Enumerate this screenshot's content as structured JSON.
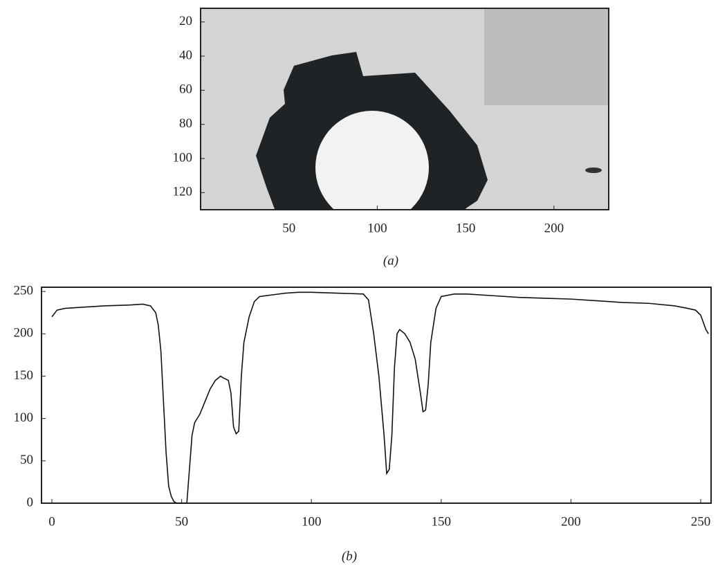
{
  "chart_data": [
    {
      "type": "image",
      "caption": "(a)",
      "xlim": [
        0,
        231
      ],
      "xticks": [
        50,
        100,
        150,
        200
      ],
      "ylim": [
        130,
        12
      ],
      "yticks": [
        20,
        40,
        60,
        80,
        100,
        120
      ]
    },
    {
      "type": "line",
      "caption": "(b)",
      "xlim": [
        -4,
        254
      ],
      "xticks": [
        0,
        50,
        100,
        150,
        200,
        250
      ],
      "ylim": [
        0,
        255
      ],
      "yticks": [
        0,
        50,
        100,
        150,
        200,
        250
      ],
      "x": [
        0,
        2,
        5,
        10,
        20,
        30,
        35,
        38,
        40,
        41,
        42,
        43,
        44,
        45,
        46,
        47,
        48,
        51,
        52,
        53,
        54,
        55,
        57,
        59,
        61,
        63,
        65,
        66,
        68,
        69,
        70,
        71,
        72,
        73,
        74,
        76,
        78,
        80,
        85,
        90,
        95,
        100,
        110,
        120,
        122,
        124,
        126,
        128,
        129,
        130,
        131,
        132,
        133,
        134,
        136,
        138,
        140,
        141,
        142,
        143,
        144,
        145,
        146,
        148,
        150,
        155,
        160,
        170,
        180,
        190,
        200,
        210,
        220,
        230,
        240,
        245,
        248,
        250,
        252,
        253
      ],
      "series": [
        {
          "color": "#111111",
          "values": [
            220,
            228,
            230,
            231,
            233,
            234,
            235,
            233,
            225,
            210,
            180,
            120,
            60,
            20,
            8,
            2,
            0,
            0,
            0,
            40,
            80,
            95,
            105,
            120,
            135,
            145,
            150,
            148,
            145,
            130,
            90,
            82,
            85,
            150,
            190,
            220,
            238,
            244,
            246,
            248,
            249,
            249,
            248,
            247,
            240,
            200,
            150,
            80,
            35,
            40,
            80,
            160,
            200,
            205,
            200,
            190,
            170,
            150,
            130,
            108,
            110,
            140,
            190,
            230,
            244,
            247,
            247,
            245,
            243,
            242,
            241,
            239,
            237,
            236,
            233,
            230,
            228,
            222,
            205,
            200
          ]
        }
      ]
    }
  ]
}
